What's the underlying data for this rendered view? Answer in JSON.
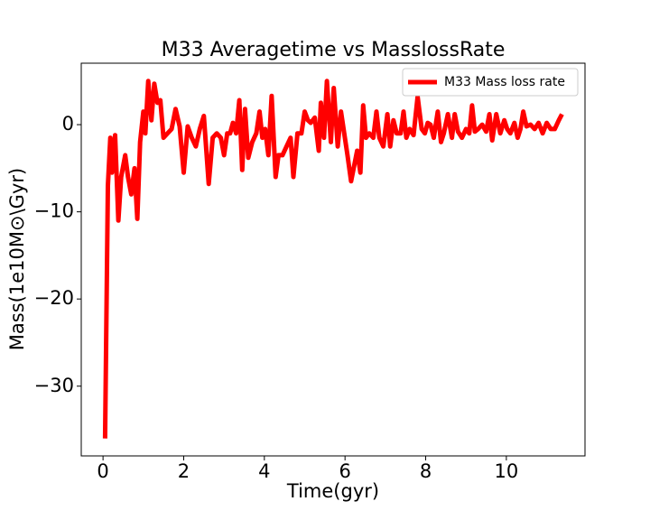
{
  "chart_data": {
    "type": "line",
    "title": "M33 Averagetime vs MasslossRate",
    "xlabel": "Time(gyr)",
    "ylabel": "Mass(1e10M⊙\\Gyr)",
    "x": [
      0.05,
      0.12,
      0.18,
      0.22,
      0.3,
      0.38,
      0.45,
      0.55,
      0.62,
      0.7,
      0.78,
      0.85,
      0.92,
      1.0,
      1.05,
      1.12,
      1.2,
      1.27,
      1.35,
      1.42,
      1.5,
      1.6,
      1.7,
      1.8,
      1.9,
      2.0,
      2.1,
      2.2,
      2.3,
      2.4,
      2.5,
      2.62,
      2.72,
      2.82,
      2.92,
      3.0,
      3.08,
      3.15,
      3.22,
      3.3,
      3.38,
      3.45,
      3.52,
      3.6,
      3.7,
      3.8,
      3.88,
      3.95,
      4.02,
      4.1,
      4.18,
      4.28,
      4.35,
      4.45,
      4.55,
      4.65,
      4.72,
      4.82,
      4.92,
      5.0,
      5.08,
      5.15,
      5.25,
      5.35,
      5.4,
      5.48,
      5.55,
      5.65,
      5.72,
      5.82,
      5.9,
      5.98,
      6.06,
      6.15,
      6.3,
      6.38,
      6.45,
      6.52,
      6.6,
      6.7,
      6.78,
      6.85,
      6.95,
      7.05,
      7.12,
      7.2,
      7.28,
      7.38,
      7.45,
      7.52,
      7.6,
      7.7,
      7.8,
      7.9,
      7.98,
      8.05,
      8.12,
      8.2,
      8.3,
      8.38,
      8.45,
      8.55,
      8.65,
      8.72,
      8.8,
      8.9,
      9.0,
      9.08,
      9.15,
      9.22,
      9.3,
      9.4,
      9.5,
      9.58,
      9.65,
      9.75,
      9.85,
      9.95,
      10.02,
      10.1,
      10.2,
      10.28,
      10.35,
      10.42,
      10.5,
      10.6,
      10.7,
      10.8,
      10.9,
      11.0,
      11.1,
      11.2,
      11.3,
      11.38
    ],
    "series": [
      {
        "name": "M33 Mass loss rate",
        "color": "#ff0000",
        "values": [
          -36,
          -7,
          -1.5,
          -5.5,
          -1.2,
          -11,
          -6,
          -3.5,
          -6,
          -8,
          -5,
          -10.8,
          -2,
          1.5,
          -1,
          5,
          0.5,
          4.7,
          2.5,
          2.8,
          -1.5,
          -1,
          -0.5,
          1.8,
          -0.2,
          -5.5,
          -0.2,
          -1.5,
          -2.5,
          -0.5,
          1.0,
          -6.8,
          -1.5,
          -1,
          -1.5,
          -3.5,
          -1,
          -1,
          0.2,
          -1,
          2.8,
          -5.2,
          1.8,
          -3.8,
          -2,
          -1,
          1.5,
          -1.5,
          -0.5,
          -3.5,
          3.3,
          -6,
          -3.5,
          -3.5,
          -2.5,
          -1.5,
          -6,
          -1,
          -1,
          1.5,
          0.5,
          0.2,
          0.8,
          -3,
          2.5,
          -1.5,
          5,
          -2,
          4.2,
          -2.5,
          1.5,
          -1,
          -3.5,
          -6.5,
          -3,
          -5.5,
          2.2,
          -1.5,
          -1,
          -1.5,
          1.5,
          -1.5,
          -2.5,
          1.2,
          -2.5,
          0.5,
          -1,
          -1,
          1.5,
          -1.5,
          -0.5,
          -1.2,
          3.2,
          -0.5,
          -1,
          0.2,
          0,
          -1.5,
          1.5,
          -2,
          -1,
          1.2,
          -1.5,
          1.2,
          -0.8,
          -1.5,
          -0.5,
          -1,
          2.2,
          -0.8,
          -0.5,
          0,
          -0.8,
          1.2,
          -1.8,
          1.2,
          -1,
          0.5,
          -0.5,
          -1,
          0.2,
          -1.5,
          -0.5,
          1.5,
          -0.2,
          0,
          -0.5,
          0.2,
          -1,
          0.2,
          -0.5,
          -0.5,
          0.5,
          1.2
        ]
      }
    ],
    "xlim": [
      -0.54,
      11.95
    ],
    "ylim": [
      -38.0,
      7.05
    ],
    "xticks": [
      0,
      2,
      4,
      6,
      8,
      10
    ],
    "yticks": [
      {
        "value": -30,
        "label": "−30"
      },
      {
        "value": -20,
        "label": "−20"
      },
      {
        "value": -10,
        "label": "−10"
      },
      0
    ],
    "legend": "upper right"
  }
}
